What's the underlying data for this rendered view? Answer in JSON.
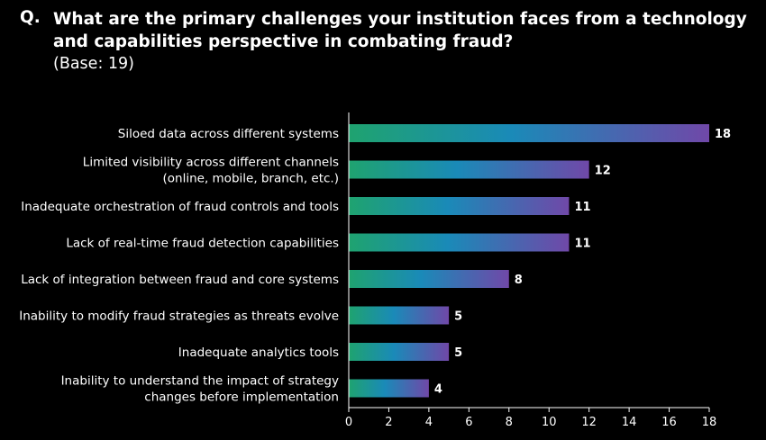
{
  "question": {
    "prefix": "Q.",
    "text": "What are the primary challenges your institution faces from a technology and capabilities perspective in combating fraud?",
    "base": "(Base: 19)"
  },
  "colors": {
    "background": "#000000",
    "bar_start": "#1fa36f",
    "bar_mid": "#1a8ab8",
    "bar_end": "#7048a8",
    "axis": "#ffffff"
  },
  "chart_data": {
    "type": "bar",
    "orientation": "horizontal",
    "title": "What are the primary challenges your institution faces from a technology and capabilities perspective in combating fraud?",
    "categories": [
      [
        "Siloed data across different systems"
      ],
      [
        "Limited visibility across different channels",
        "(online, mobile, branch, etc.)"
      ],
      [
        "Inadequate orchestration of fraud controls and tools"
      ],
      [
        "Lack of real-time fraud detection capabilities"
      ],
      [
        "Lack of integration between fraud and core systems"
      ],
      [
        "Inability to modify fraud strategies as threats evolve"
      ],
      [
        "Inadequate analytics tools"
      ],
      [
        "Inability to understand the impact of strategy",
        "changes before implementation"
      ]
    ],
    "values": [
      18,
      12,
      11,
      11,
      8,
      5,
      5,
      4
    ],
    "xlim": [
      0,
      18
    ],
    "xticks": [
      0,
      2,
      4,
      6,
      8,
      10,
      12,
      14,
      16,
      18
    ],
    "xlabel": "",
    "ylabel": "",
    "grid": false
  }
}
